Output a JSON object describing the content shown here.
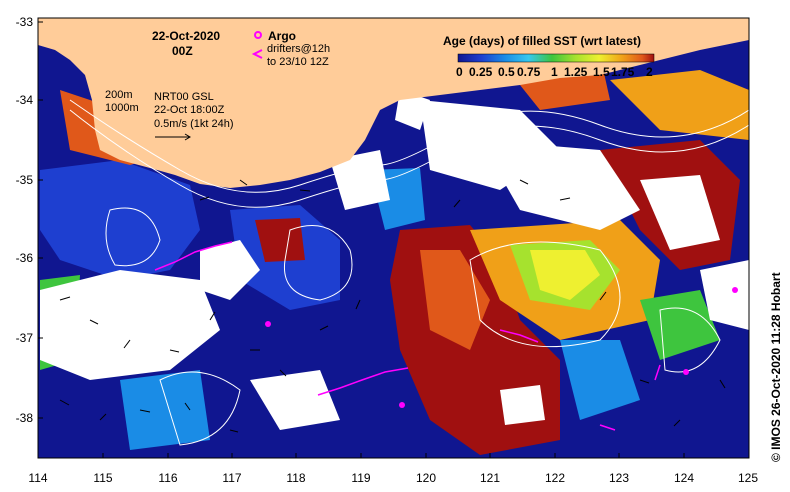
{
  "map": {
    "date": "22-Oct-2020",
    "time": "00Z",
    "legend_title": "Age (days) of filled SST (wrt latest)",
    "legend_ticks": [
      "0",
      "0.25",
      "0.5",
      "0.75",
      "1",
      "1.25",
      "1.5",
      "1.75",
      "2"
    ],
    "legend_colors": [
      "#101690",
      "#1e3fd0",
      "#1a8ce6",
      "#35c8ee",
      "#3ec53e",
      "#a6e22e",
      "#eef030",
      "#f0a018",
      "#e0581a",
      "#a01010"
    ],
    "argo_label": "Argo",
    "drifters_label_1": "drifters@12h",
    "drifters_label_2": "to 23/10 12Z",
    "depth_label_1": "200m",
    "depth_label_2": "1000m",
    "current_label_1": "NRT00 GSL",
    "current_label_2": "22-Oct 18:00Z",
    "current_label_3": "0.5m/s (1kt 24h)",
    "credit": "© IMOS 26-Oct-2020 11:28 Hobart",
    "x_ticks": [
      "114",
      "115",
      "116",
      "117",
      "118",
      "119",
      "120",
      "121",
      "122",
      "123",
      "124",
      "125"
    ],
    "y_ticks": [
      "-33",
      "-34",
      "-35",
      "-36",
      "-37",
      "-38"
    ],
    "colors": {
      "land": "#ffcc99",
      "no_data": "#ffffff",
      "argo": "#ff00ff",
      "drifter": "#ff00ff"
    }
  }
}
